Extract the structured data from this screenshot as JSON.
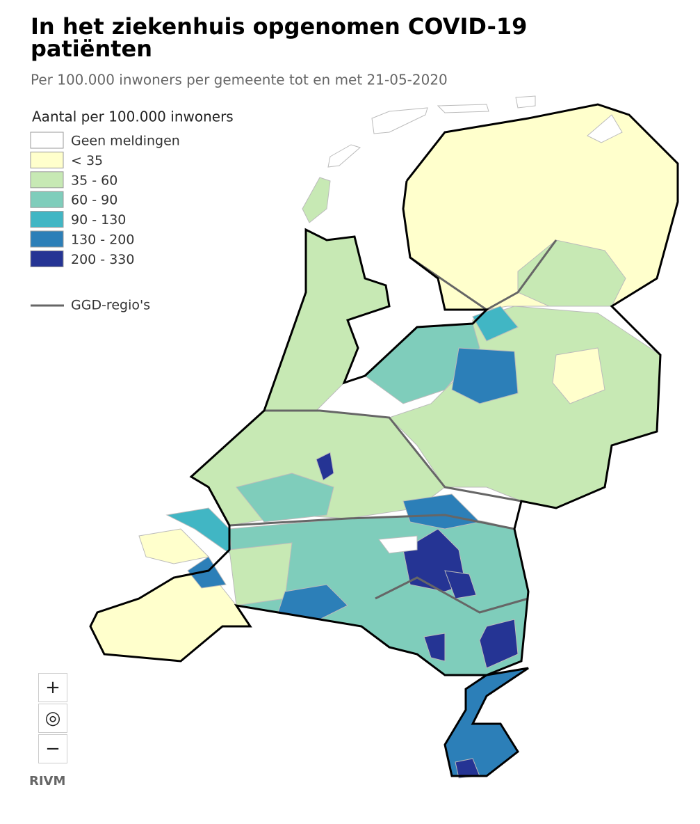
{
  "header": {
    "title_line1": "In het ziekenhuis opgenomen COVID-19",
    "title_line2": "patiënten",
    "subtitle": "Per 100.000 inwoners per gemeente tot en met 21-05-2020"
  },
  "legend": {
    "title": "Aantal per 100.000 inwoners",
    "items": [
      {
        "label": "Geen meldingen",
        "color": "#ffffff"
      },
      {
        "label": "< 35",
        "color": "#ffffcc"
      },
      {
        "label": "35 - 60",
        "color": "#c7e9b4"
      },
      {
        "label": "60 - 90",
        "color": "#7fcdbb"
      },
      {
        "label": "90 - 130",
        "color": "#41b6c4"
      },
      {
        "label": "130 - 200",
        "color": "#2c7fb8"
      },
      {
        "label": "200 - 330",
        "color": "#253494"
      }
    ],
    "boundary": {
      "label": "GGD-regio's",
      "color": "#666666"
    }
  },
  "controls": {
    "zoom_in": "+",
    "reset": "◎",
    "zoom_out": "−"
  },
  "credit": "RIVM"
}
